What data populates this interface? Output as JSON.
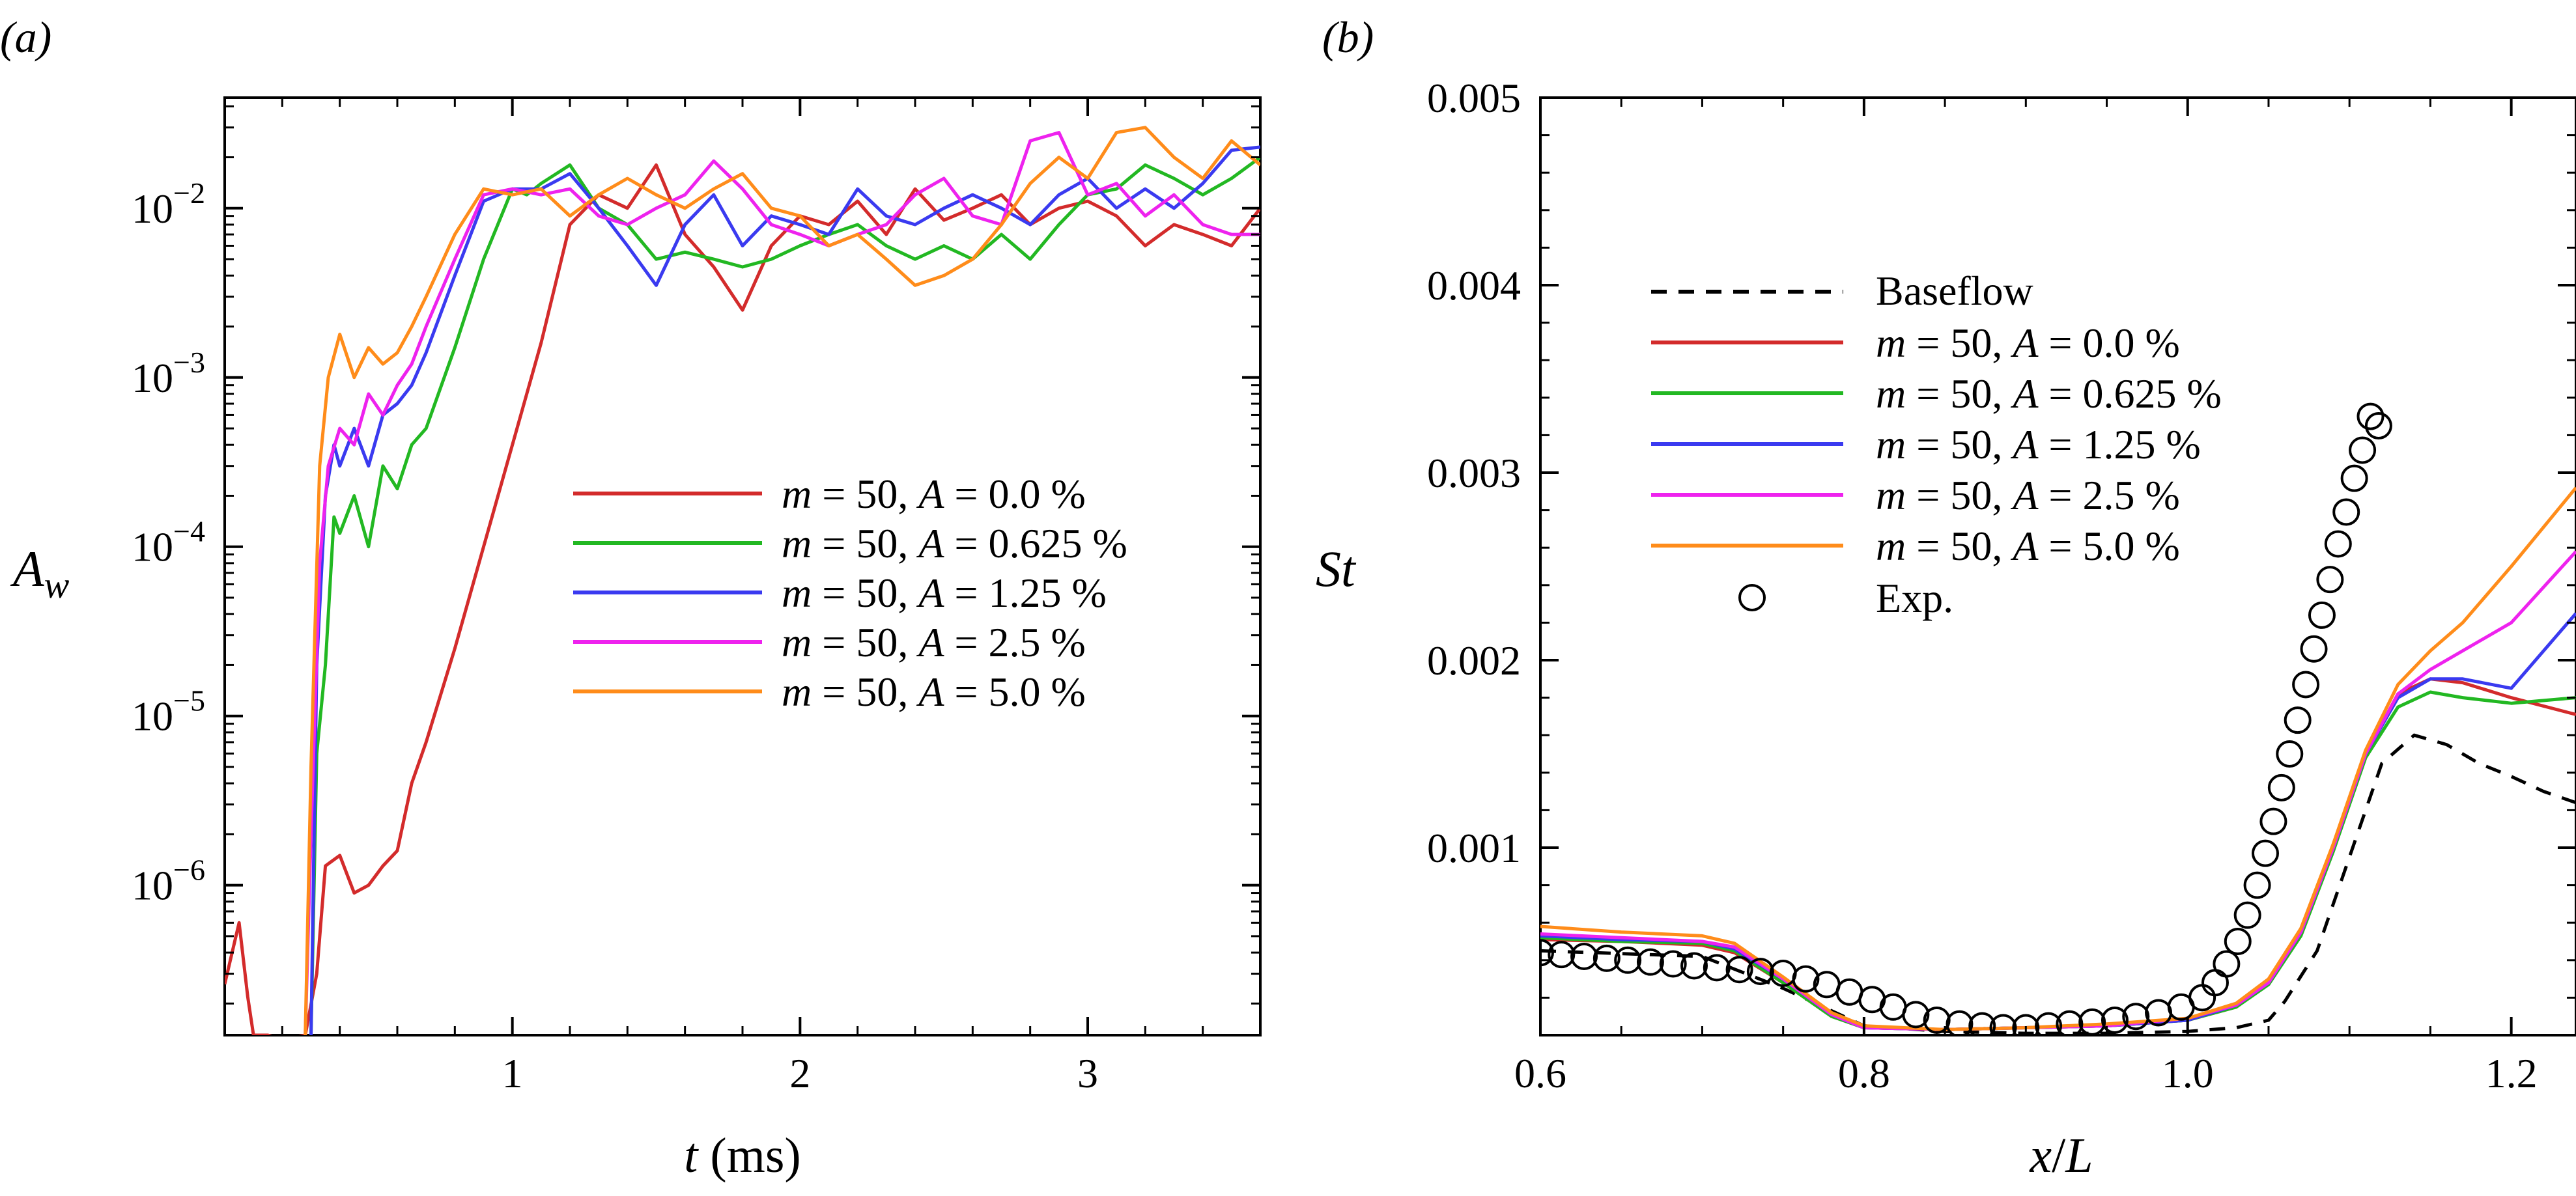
{
  "chart_data": [
    {
      "panel_label": "(a)",
      "type": "line",
      "xlabel_var": "t",
      "xlabel_unit": " (ms)",
      "ylabel_base": "A",
      "ylabel_sub": "w",
      "xlim": [
        0.0,
        3.6
      ],
      "ylim": [
        1.3e-07,
        0.045
      ],
      "yscale": "log",
      "grid": false,
      "legend_placement": "right-middle",
      "x_ticks": [
        {
          "value": 1,
          "label": "1"
        },
        {
          "value": 2,
          "label": "2"
        },
        {
          "value": 3,
          "label": "3"
        }
      ],
      "y_ticks": [
        {
          "value": 1e-06,
          "base": "10",
          "exp": "−6"
        },
        {
          "value": 1e-05,
          "base": "10",
          "exp": "−5"
        },
        {
          "value": 0.0001,
          "base": "10",
          "exp": "−4"
        },
        {
          "value": 0.001,
          "base": "10",
          "exp": "−3"
        },
        {
          "value": 0.01,
          "base": "10",
          "exp": "−2"
        }
      ],
      "series": [
        {
          "name": "m = 50, A = 0.0 %",
          "m_label": "m",
          "m_rest": " = 50, ",
          "a_label": "A",
          "a_rest": " = 0.0 %",
          "color": "#d32b2b",
          "x": [
            0.0,
            0.05,
            0.08,
            0.1,
            0.12,
            0.15,
            0.2,
            0.28,
            0.32,
            0.35,
            0.4,
            0.45,
            0.5,
            0.55,
            0.6,
            0.65,
            0.7,
            0.8,
            0.9,
            1.0,
            1.1,
            1.2,
            1.3,
            1.4,
            1.5,
            1.6,
            1.7,
            1.8,
            1.9,
            2.0,
            2.1,
            2.2,
            2.3,
            2.4,
            2.5,
            2.6,
            2.7,
            2.8,
            2.9,
            3.0,
            3.1,
            3.2,
            3.3,
            3.4,
            3.5,
            3.6
          ],
          "y": [
            2.6e-07,
            6e-07,
            2.2e-07,
            1.3e-07,
            1.3e-07,
            1.3e-07,
            1.2e-07,
            1.3e-07,
            3e-07,
            1.3e-06,
            1.5e-06,
            9e-07,
            1e-06,
            1.3e-06,
            1.6e-06,
            4e-06,
            7e-06,
            2.5e-05,
            0.0001,
            0.0004,
            0.0016,
            0.008,
            0.012,
            0.01,
            0.018,
            0.007,
            0.0045,
            0.0025,
            0.006,
            0.009,
            0.008,
            0.011,
            0.007,
            0.013,
            0.0085,
            0.01,
            0.012,
            0.008,
            0.01,
            0.011,
            0.009,
            0.006,
            0.008,
            0.007,
            0.006,
            0.01
          ]
        },
        {
          "name": "m = 50, A = 0.625 %",
          "m_label": "m",
          "m_rest": " = 50, ",
          "a_label": "A",
          "a_rest": " = 0.625 %",
          "color": "#22b822",
          "x": [
            0.3,
            0.32,
            0.35,
            0.38,
            0.4,
            0.45,
            0.5,
            0.55,
            0.6,
            0.65,
            0.7,
            0.8,
            0.9,
            1.0,
            1.05,
            1.1,
            1.2,
            1.3,
            1.4,
            1.5,
            1.6,
            1.7,
            1.8,
            1.9,
            2.0,
            2.1,
            2.2,
            2.3,
            2.4,
            2.5,
            2.6,
            2.7,
            2.8,
            2.9,
            3.0,
            3.1,
            3.2,
            3.3,
            3.4,
            3.5,
            3.6
          ],
          "y": [
            1.3e-07,
            6e-06,
            2e-05,
            0.00015,
            0.00012,
            0.0002,
            0.0001,
            0.0003,
            0.00022,
            0.0004,
            0.0005,
            0.0015,
            0.005,
            0.013,
            0.012,
            0.014,
            0.018,
            0.01,
            0.008,
            0.005,
            0.0055,
            0.005,
            0.0045,
            0.005,
            0.006,
            0.007,
            0.008,
            0.006,
            0.005,
            0.006,
            0.005,
            0.007,
            0.005,
            0.008,
            0.012,
            0.013,
            0.018,
            0.015,
            0.012,
            0.015,
            0.02
          ]
        },
        {
          "name": "m = 50, A = 1.25 %",
          "m_label": "m",
          "m_rest": " = 50, ",
          "a_label": "A",
          "a_rest": " = 1.25 %",
          "color": "#3a3af0",
          "x": [
            0.3,
            0.32,
            0.35,
            0.38,
            0.4,
            0.45,
            0.5,
            0.55,
            0.6,
            0.65,
            0.7,
            0.8,
            0.9,
            1.0,
            1.1,
            1.2,
            1.3,
            1.4,
            1.5,
            1.6,
            1.7,
            1.8,
            1.9,
            2.0,
            2.1,
            2.2,
            2.3,
            2.4,
            2.5,
            2.6,
            2.7,
            2.8,
            2.9,
            3.0,
            3.1,
            3.2,
            3.3,
            3.4,
            3.5,
            3.6
          ],
          "y": [
            1.3e-07,
            2e-05,
            0.0002,
            0.0004,
            0.0003,
            0.0005,
            0.0003,
            0.0006,
            0.0007,
            0.0009,
            0.0014,
            0.004,
            0.011,
            0.013,
            0.013,
            0.016,
            0.01,
            0.006,
            0.0035,
            0.008,
            0.012,
            0.006,
            0.009,
            0.008,
            0.007,
            0.013,
            0.009,
            0.008,
            0.01,
            0.012,
            0.01,
            0.008,
            0.012,
            0.015,
            0.01,
            0.013,
            0.01,
            0.014,
            0.022,
            0.023
          ]
        },
        {
          "name": "m = 50, A = 2.5 %",
          "m_label": "m",
          "m_rest": " = 50, ",
          "a_label": "A",
          "a_rest": " = 2.5 %",
          "color": "#ee22ee",
          "x": [
            0.28,
            0.3,
            0.33,
            0.36,
            0.4,
            0.45,
            0.5,
            0.55,
            0.6,
            0.65,
            0.7,
            0.8,
            0.9,
            1.0,
            1.1,
            1.2,
            1.3,
            1.4,
            1.5,
            1.6,
            1.7,
            1.8,
            1.9,
            2.0,
            2.1,
            2.2,
            2.3,
            2.4,
            2.5,
            2.6,
            2.7,
            2.8,
            2.9,
            3.0,
            3.1,
            3.2,
            3.3,
            3.4,
            3.5,
            3.6
          ],
          "y": [
            1.3e-07,
            2e-06,
            8e-05,
            0.0003,
            0.0005,
            0.0004,
            0.0008,
            0.0006,
            0.0009,
            0.0012,
            0.002,
            0.005,
            0.012,
            0.013,
            0.012,
            0.013,
            0.009,
            0.008,
            0.01,
            0.012,
            0.019,
            0.013,
            0.008,
            0.007,
            0.006,
            0.007,
            0.008,
            0.012,
            0.015,
            0.009,
            0.008,
            0.025,
            0.028,
            0.012,
            0.014,
            0.009,
            0.012,
            0.008,
            0.007,
            0.007
          ]
        },
        {
          "name": "m = 50, A = 5.0 %",
          "m_label": "m",
          "m_rest": " = 50, ",
          "a_label": "A",
          "a_rest": " = 5.0 %",
          "color": "#ff8c1a",
          "x": [
            0.28,
            0.3,
            0.33,
            0.36,
            0.4,
            0.45,
            0.5,
            0.55,
            0.6,
            0.65,
            0.7,
            0.8,
            0.9,
            1.0,
            1.1,
            1.2,
            1.3,
            1.4,
            1.5,
            1.6,
            1.7,
            1.8,
            1.9,
            2.0,
            2.1,
            2.2,
            2.3,
            2.4,
            2.5,
            2.6,
            2.7,
            2.8,
            2.9,
            3.0,
            3.1,
            3.2,
            3.3,
            3.4,
            3.5,
            3.6
          ],
          "y": [
            1.3e-07,
            5e-06,
            0.0003,
            0.001,
            0.0018,
            0.001,
            0.0015,
            0.0012,
            0.0014,
            0.002,
            0.003,
            0.007,
            0.013,
            0.012,
            0.013,
            0.009,
            0.012,
            0.015,
            0.012,
            0.01,
            0.013,
            0.016,
            0.01,
            0.009,
            0.006,
            0.007,
            0.005,
            0.0035,
            0.004,
            0.005,
            0.008,
            0.014,
            0.02,
            0.015,
            0.028,
            0.03,
            0.02,
            0.015,
            0.025,
            0.018
          ]
        }
      ]
    },
    {
      "panel_label": "(b)",
      "type": "line",
      "xlabel_var1": "x",
      "xlabel_slash": "/",
      "xlabel_var2": "L",
      "ylabel": "St",
      "xlim": [
        0.6,
        1.24
      ],
      "ylim": [
        0.0,
        0.005
      ],
      "yscale": "linear",
      "grid": false,
      "legend_placement": "top-left",
      "x_ticks": [
        {
          "value": 0.6,
          "label": "0.6"
        },
        {
          "value": 0.8,
          "label": "0.8"
        },
        {
          "value": 1.0,
          "label": "1.0"
        },
        {
          "value": 1.2,
          "label": "1.2"
        }
      ],
      "y_ticks": [
        {
          "value": 0.001,
          "label": "0.001"
        },
        {
          "value": 0.002,
          "label": "0.002"
        },
        {
          "value": 0.003,
          "label": "0.003"
        },
        {
          "value": 0.004,
          "label": "0.004"
        },
        {
          "value": 0.005,
          "label": "0.005"
        }
      ],
      "series": [
        {
          "name": "Baseflow",
          "label": "Baseflow",
          "color": "#000000",
          "dash": true,
          "x": [
            0.6,
            0.7,
            0.75,
            0.8,
            0.85,
            0.9,
            0.95,
            1.0,
            1.03,
            1.05,
            1.06,
            1.08,
            1.1,
            1.12,
            1.14,
            1.16,
            1.18,
            1.2,
            1.22,
            1.24
          ],
          "y": [
            0.00045,
            0.00042,
            0.00025,
            5e-05,
            2e-05,
            1e-05,
            1e-05,
            2e-05,
            4e-05,
            8e-05,
            0.00018,
            0.00045,
            0.00095,
            0.00145,
            0.0016,
            0.00155,
            0.00145,
            0.00138,
            0.0013,
            0.00124
          ]
        },
        {
          "name": "m = 50, A = 0.0 %",
          "m_label": "m",
          "m_rest": " = 50, ",
          "a_label": "A",
          "a_rest": " = 0.0 %",
          "color": "#d32b2b",
          "x": [
            0.6,
            0.65,
            0.7,
            0.72,
            0.75,
            0.78,
            0.8,
            0.85,
            0.9,
            0.95,
            1.0,
            1.03,
            1.05,
            1.07,
            1.09,
            1.11,
            1.13,
            1.15,
            1.17,
            1.2,
            1.24
          ],
          "y": [
            0.00051,
            0.0005,
            0.00048,
            0.00044,
            0.00028,
            0.0001,
            4e-05,
            3e-05,
            4e-05,
            5e-05,
            8e-05,
            0.00015,
            0.00028,
            0.00055,
            0.001,
            0.0015,
            0.00182,
            0.0019,
            0.00188,
            0.0018,
            0.00171
          ]
        },
        {
          "name": "m = 50, A = 0.625 %",
          "m_label": "m",
          "m_rest": " = 50, ",
          "a_label": "A",
          "a_rest": " = 0.625 %",
          "color": "#22b822",
          "x": [
            0.6,
            0.65,
            0.7,
            0.72,
            0.75,
            0.78,
            0.8,
            0.85,
            0.9,
            0.95,
            1.0,
            1.03,
            1.05,
            1.07,
            1.09,
            1.11,
            1.13,
            1.15,
            1.17,
            1.2,
            1.24
          ],
          "y": [
            0.00052,
            0.0005,
            0.00049,
            0.00045,
            0.00028,
            0.0001,
            4e-05,
            3e-05,
            4e-05,
            5e-05,
            8e-05,
            0.00015,
            0.00027,
            0.00053,
            0.00098,
            0.00148,
            0.00175,
            0.00183,
            0.0018,
            0.00177,
            0.0018
          ]
        },
        {
          "name": "m = 50, A = 1.25 %",
          "m_label": "m",
          "m_rest": " = 50, ",
          "a_label": "A",
          "a_rest": " = 1.25 %",
          "color": "#3a3af0",
          "x": [
            0.6,
            0.65,
            0.7,
            0.72,
            0.75,
            0.78,
            0.8,
            0.85,
            0.9,
            0.95,
            1.0,
            1.03,
            1.05,
            1.07,
            1.09,
            1.11,
            1.13,
            1.15,
            1.17,
            1.2,
            1.24
          ],
          "y": [
            0.00053,
            0.00051,
            0.0005,
            0.00046,
            0.0003,
            0.00011,
            4e-05,
            3e-05,
            4e-05,
            5e-05,
            8e-05,
            0.00016,
            0.00028,
            0.00055,
            0.001,
            0.0015,
            0.0018,
            0.0019,
            0.0019,
            0.00185,
            0.00225
          ]
        },
        {
          "name": "m = 50, A = 2.5 %",
          "m_label": "m",
          "m_rest": " = 50, ",
          "a_label": "A",
          "a_rest": " = 2.5 %",
          "color": "#ee22ee",
          "x": [
            0.6,
            0.65,
            0.7,
            0.72,
            0.75,
            0.78,
            0.8,
            0.85,
            0.9,
            0.95,
            1.0,
            1.03,
            1.05,
            1.07,
            1.09,
            1.11,
            1.13,
            1.15,
            1.17,
            1.2,
            1.24
          ],
          "y": [
            0.00054,
            0.00052,
            0.0005,
            0.00047,
            0.0003,
            0.00011,
            4e-05,
            3e-05,
            4e-05,
            5e-05,
            9e-05,
            0.00016,
            0.00028,
            0.00055,
            0.001,
            0.0015,
            0.00182,
            0.00195,
            0.00205,
            0.0022,
            0.00258
          ]
        },
        {
          "name": "m = 50, A = 5.0 %",
          "m_label": "m",
          "m_rest": " = 50, ",
          "a_label": "A",
          "a_rest": " = 5.0 %",
          "color": "#ff8c1a",
          "x": [
            0.6,
            0.65,
            0.7,
            0.72,
            0.75,
            0.78,
            0.8,
            0.85,
            0.9,
            0.95,
            1.0,
            1.03,
            1.05,
            1.07,
            1.09,
            1.11,
            1.13,
            1.15,
            1.17,
            1.2,
            1.24
          ],
          "y": [
            0.00058,
            0.00055,
            0.00053,
            0.00049,
            0.00031,
            0.00012,
            5e-05,
            3e-05,
            4e-05,
            6e-05,
            9e-05,
            0.00017,
            0.0003,
            0.00057,
            0.00102,
            0.00152,
            0.00187,
            0.00205,
            0.0022,
            0.0025,
            0.00292
          ]
        },
        {
          "name": "Exp.",
          "label": "Exp.",
          "color": "#000000",
          "markers_only": true,
          "x": [
            0.6,
            0.613,
            0.627,
            0.641,
            0.654,
            0.668,
            0.682,
            0.695,
            0.709,
            0.723,
            0.736,
            0.75,
            0.764,
            0.777,
            0.791,
            0.805,
            0.818,
            0.832,
            0.845,
            0.859,
            0.873,
            0.886,
            0.9,
            0.914,
            0.927,
            0.941,
            0.955,
            0.968,
            0.982,
            0.996,
            1.009,
            1.017,
            1.024,
            1.031,
            1.037,
            1.043,
            1.048,
            1.053,
            1.058,
            1.063,
            1.068,
            1.073,
            1.078,
            1.083,
            1.088,
            1.093,
            1.098,
            1.103,
            1.108,
            1.113,
            1.118
          ],
          "y": [
            0.00044,
            0.00043,
            0.00042,
            0.00041,
            0.0004,
            0.00039,
            0.00038,
            0.00037,
            0.00036,
            0.00035,
            0.00034,
            0.00033,
            0.0003,
            0.00027,
            0.00023,
            0.00019,
            0.00015,
            0.00011,
            8e-05,
            6e-05,
            5e-05,
            4e-05,
            4e-05,
            5e-05,
            6e-05,
            7e-05,
            8e-05,
            0.0001,
            0.00012,
            0.00015,
            0.0002,
            0.00028,
            0.00038,
            0.0005,
            0.00064,
            0.0008,
            0.00097,
            0.00114,
            0.00132,
            0.0015,
            0.00168,
            0.00187,
            0.00206,
            0.00224,
            0.00243,
            0.00262,
            0.00279,
            0.00297,
            0.00312,
            0.0033,
            0.00325
          ]
        }
      ]
    }
  ]
}
